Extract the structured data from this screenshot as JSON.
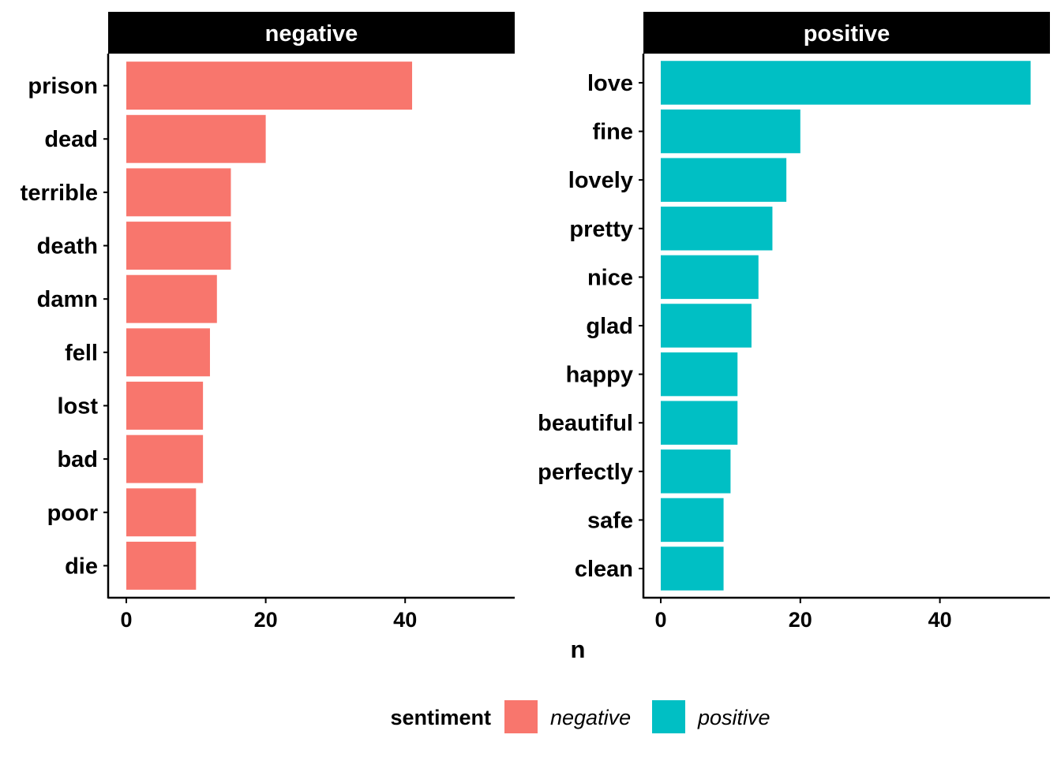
{
  "chart_data": {
    "type": "bar",
    "orientation": "horizontal",
    "facets": [
      {
        "title": "negative",
        "categories": [
          "prison",
          "dead",
          "terrible",
          "death",
          "damn",
          "fell",
          "lost",
          "bad",
          "poor",
          "die"
        ],
        "values": [
          41,
          20,
          15,
          15,
          13,
          12,
          11,
          11,
          10,
          10
        ],
        "color": "#F8766D"
      },
      {
        "title": "positive",
        "categories": [
          "love",
          "fine",
          "lovely",
          "pretty",
          "nice",
          "glad",
          "happy",
          "beautiful",
          "perfectly",
          "safe",
          "clean"
        ],
        "values": [
          53,
          20,
          18,
          16,
          14,
          13,
          11,
          11,
          10,
          9,
          9
        ],
        "color": "#00BFC4"
      }
    ],
    "xlabel": "n",
    "ylabel": "",
    "xlim": [
      0,
      55
    ],
    "xticks": [
      0,
      20,
      40
    ],
    "grid": false,
    "legend": {
      "title": "sentiment",
      "position": "bottom",
      "entries": [
        {
          "label": "negative",
          "color": "#F8766D"
        },
        {
          "label": "positive",
          "color": "#00BFC4"
        }
      ]
    }
  }
}
